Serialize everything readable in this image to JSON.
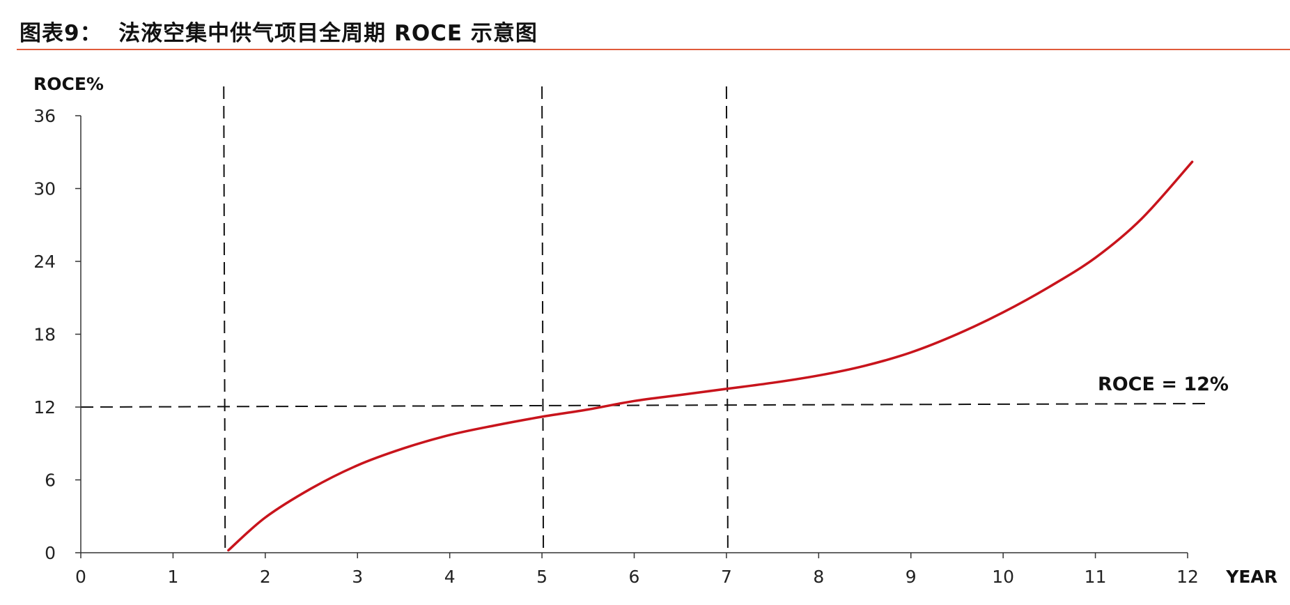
{
  "figure": {
    "title": "图表9：  法液空集中供气项目全周期 ROCE 示意图"
  },
  "chart_data": {
    "type": "line",
    "ylabel": "ROCE%",
    "xlabel": "YEAR",
    "xlim": [
      0,
      12
    ],
    "ylim": [
      0,
      36
    ],
    "xticks": [
      0,
      1,
      2,
      3,
      4,
      5,
      6,
      7,
      8,
      9,
      10,
      11,
      12
    ],
    "yticks": [
      0,
      6,
      12,
      18,
      24,
      30,
      36
    ],
    "grid": false,
    "series": [
      {
        "color": "#c8141c",
        "x": [
          1.6,
          2.0,
          2.5,
          3.0,
          3.5,
          4.0,
          4.5,
          5.0,
          5.5,
          6.0,
          6.5,
          7.0,
          7.5,
          8.0,
          8.5,
          9.0,
          9.5,
          10.0,
          10.5,
          11.0,
          11.5,
          12.05
        ],
        "y": [
          0.2,
          2.9,
          5.3,
          7.2,
          8.6,
          9.7,
          10.5,
          11.2,
          11.8,
          12.5,
          13.0,
          13.5,
          14.0,
          14.6,
          15.4,
          16.5,
          18.0,
          19.8,
          21.9,
          24.3,
          27.5,
          32.2
        ]
      }
    ],
    "reference_lines": {
      "horizontal": [
        {
          "y": 12,
          "label": "ROCE = 12%"
        }
      ],
      "vertical": [
        1.55,
        5.0,
        7.0
      ]
    }
  },
  "colors": {
    "curve": "#c8141c",
    "title_rule": "#e05a3a",
    "axis": "#333333"
  }
}
